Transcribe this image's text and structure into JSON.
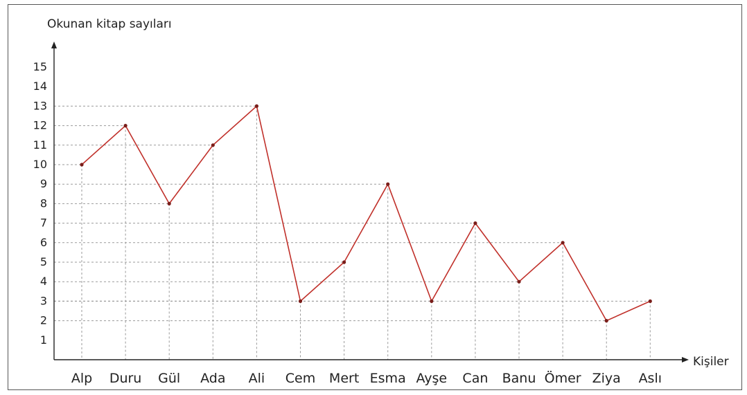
{
  "chart_data": {
    "type": "line",
    "ylabel": "Okunan kitap sayıları",
    "xlabel": "Kişiler",
    "categories": [
      "Alp",
      "Duru",
      "Gül",
      "Ada",
      "Ali",
      "Cem",
      "Mert",
      "Esma",
      "Ayşe",
      "Can",
      "Banu",
      "Ömer",
      "Ziya",
      "Aslı"
    ],
    "values": [
      10,
      12,
      8,
      11,
      13,
      3,
      5,
      9,
      3,
      7,
      4,
      6,
      2,
      3
    ],
    "ylim": [
      0,
      15
    ],
    "yticks": [
      1,
      2,
      3,
      4,
      5,
      6,
      7,
      8,
      9,
      10,
      11,
      12,
      13,
      14,
      15
    ],
    "grid": "dashed, only up to each data point",
    "line_color": "#c0302a",
    "marker_color": "#7a1e1a"
  }
}
